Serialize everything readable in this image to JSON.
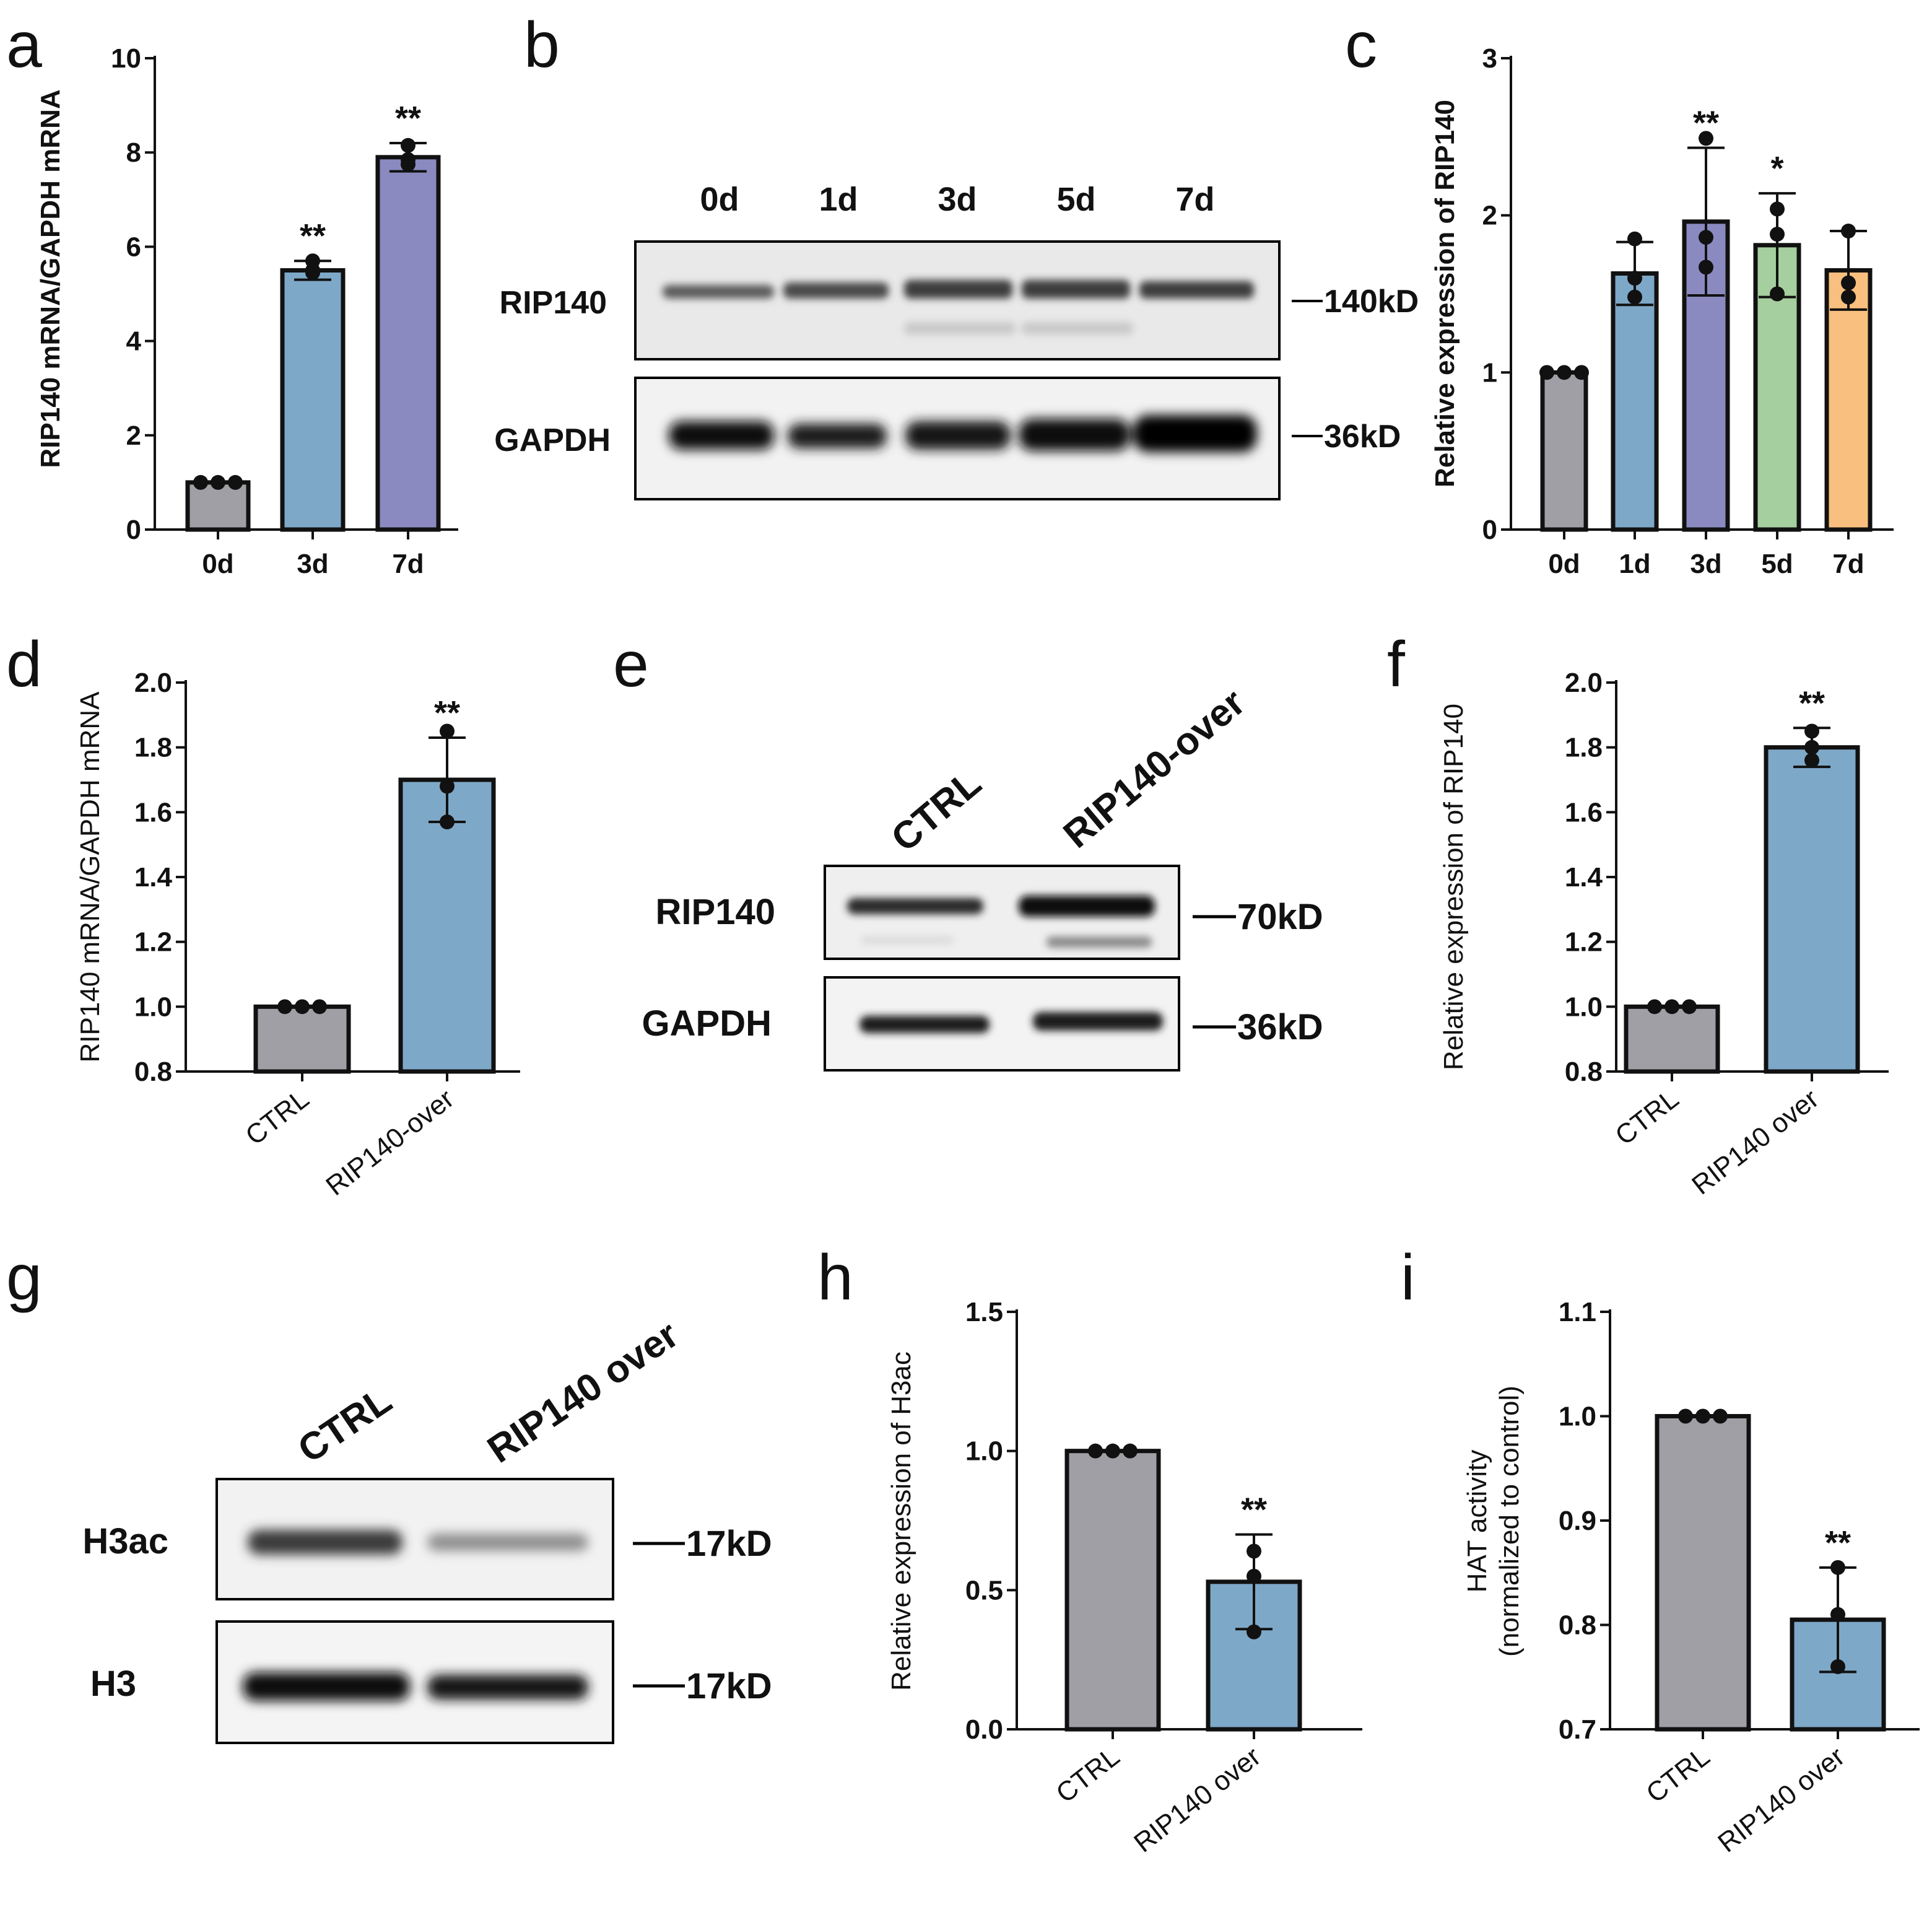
{
  "panels": {
    "a": "a",
    "b": "b",
    "c": "c",
    "d": "d",
    "e": "e",
    "f": "f",
    "g": "g",
    "h": "h",
    "i": "i"
  },
  "chart_data": [
    {
      "id": "a",
      "type": "bar",
      "title": "",
      "ylabel": "RIP140 mRNA/GAPDH mRNA",
      "ylim": [
        0,
        10
      ],
      "yticks": [
        "0",
        "2",
        "4",
        "6",
        "8",
        "10"
      ],
      "categories": [
        "0d",
        "3d",
        "7d"
      ],
      "values": [
        1.0,
        5.5,
        7.9
      ],
      "errors": [
        0.0,
        0.2,
        0.3
      ],
      "points": [
        [
          1.0,
          1.0,
          1.0
        ],
        [
          5.45,
          5.5,
          5.7
        ],
        [
          7.75,
          7.85,
          8.15
        ]
      ],
      "sig": [
        "",
        "**",
        "**"
      ],
      "colors": [
        "#a19fa6",
        "#7ea8c8",
        "#8a8ac0"
      ]
    },
    {
      "id": "c",
      "type": "bar",
      "title": "",
      "ylabel": "Relative expression of RIP140",
      "ylim": [
        0,
        3
      ],
      "yticks": [
        "0",
        "1",
        "2",
        "3"
      ],
      "categories": [
        "0d",
        "1d",
        "3d",
        "5d",
        "7d"
      ],
      "values": [
        1.0,
        1.63,
        1.96,
        1.81,
        1.65
      ],
      "errors": [
        0.0,
        0.2,
        0.47,
        0.33,
        0.25
      ],
      "points": [
        [
          1.0,
          1.0,
          1.0
        ],
        [
          1.48,
          1.6,
          1.85
        ],
        [
          1.67,
          1.86,
          2.49
        ],
        [
          1.5,
          1.88,
          2.04
        ],
        [
          1.48,
          1.57,
          1.9
        ]
      ],
      "sig": [
        "",
        "",
        "**",
        "*",
        ""
      ],
      "colors": [
        "#a19fa6",
        "#7ea8c8",
        "#8a8ac0",
        "#a5cf9e",
        "#f8bf7e"
      ]
    },
    {
      "id": "d",
      "type": "bar",
      "title": "",
      "ylabel": "RIP140 mRNA/GAPDH mRNA",
      "ylim": [
        0.8,
        2.0
      ],
      "yticks": [
        "0.8",
        "1.0",
        "1.2",
        "1.4",
        "1.6",
        "1.8",
        "2.0"
      ],
      "categories": [
        "CTRL",
        "RIP140-over"
      ],
      "values": [
        1.0,
        1.7
      ],
      "errors": [
        0.0,
        0.13
      ],
      "points": [
        [
          1.0,
          1.0,
          1.0
        ],
        [
          1.57,
          1.68,
          1.85
        ]
      ],
      "sig": [
        "",
        "**"
      ],
      "colors": [
        "#a19fa6",
        "#7ea8c8"
      ]
    },
    {
      "id": "f",
      "type": "bar",
      "title": "",
      "ylabel": "Relative expression of RIP140",
      "ylim": [
        0.8,
        2.0
      ],
      "yticks": [
        "0.8",
        "1.0",
        "1.2",
        "1.4",
        "1.6",
        "1.8",
        "2.0"
      ],
      "categories": [
        "CTRL",
        "RIP140 over"
      ],
      "values": [
        1.0,
        1.8
      ],
      "errors": [
        0.0,
        0.06
      ],
      "points": [
        [
          1.0,
          1.0,
          1.0
        ],
        [
          1.76,
          1.8,
          1.85
        ]
      ],
      "sig": [
        "",
        "**"
      ],
      "colors": [
        "#a19fa6",
        "#7ea8c8"
      ]
    },
    {
      "id": "h",
      "type": "bar",
      "title": "",
      "ylabel": "Relative expression of H3ac",
      "ylim": [
        0,
        1.5
      ],
      "yticks": [
        "0.0",
        "0.5",
        "1.0",
        "1.5"
      ],
      "categories": [
        "CTRL",
        "RIP140 over"
      ],
      "values": [
        1.0,
        0.53
      ],
      "errors": [
        0.0,
        0.17
      ],
      "points": [
        [
          1.0,
          1.0,
          1.0
        ],
        [
          0.35,
          0.55,
          0.64
        ]
      ],
      "sig": [
        "",
        "**"
      ],
      "colors": [
        "#a19fa6",
        "#7ea8c8"
      ]
    },
    {
      "id": "i",
      "type": "bar",
      "title": "",
      "ylabel": "HAT activity",
      "ylabel2": "(normalized to control)",
      "ylim": [
        0.7,
        1.1
      ],
      "yticks": [
        "0.7",
        "0.8",
        "0.9",
        "1.0",
        "1.1"
      ],
      "categories": [
        "CTRL",
        "RIP140 over"
      ],
      "values": [
        1.0,
        0.805
      ],
      "errors": [
        0.0,
        0.05
      ],
      "points": [
        [
          1.0,
          1.0,
          1.0
        ],
        [
          0.76,
          0.81,
          0.855
        ]
      ],
      "sig": [
        "",
        "**"
      ],
      "colors": [
        "#a19fa6",
        "#7ea8c8"
      ]
    }
  ],
  "blots": {
    "b": {
      "lanes": [
        "0d",
        "1d",
        "3d",
        "5d",
        "7d"
      ],
      "rows": [
        {
          "label": "RIP140",
          "marker": "140kD"
        },
        {
          "label": "GAPDH",
          "marker": "36kD"
        }
      ]
    },
    "e": {
      "lanes": [
        "CTRL",
        "RIP140-over"
      ],
      "rows": [
        {
          "label": "RIP140",
          "marker": "70kD"
        },
        {
          "label": "GAPDH",
          "marker": "36kD"
        }
      ]
    },
    "g": {
      "lanes": [
        "CTRL",
        "RIP140 over"
      ],
      "rows": [
        {
          "label": "H3ac",
          "marker": "17kD"
        },
        {
          "label": "H3",
          "marker": "17kD"
        }
      ]
    }
  }
}
